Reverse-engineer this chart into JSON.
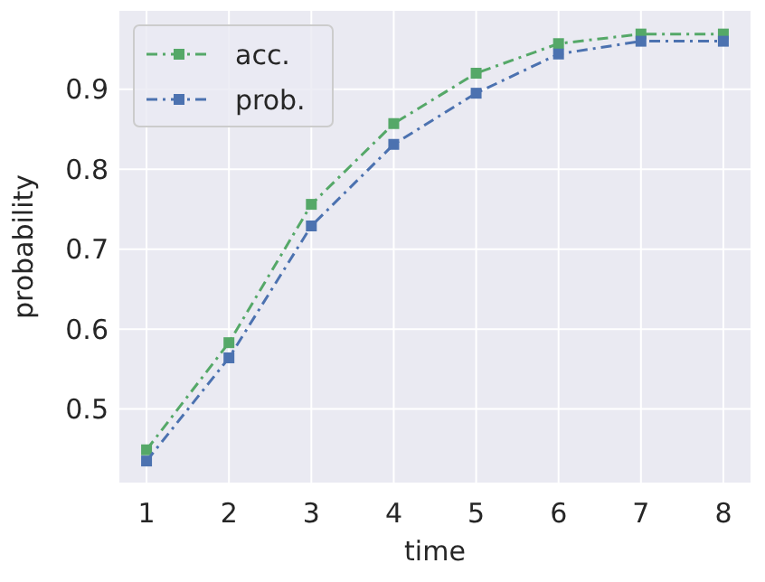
{
  "chart_data": {
    "type": "line",
    "xlabel": "time",
    "ylabel": "probability",
    "x": [
      1,
      2,
      3,
      4,
      5,
      6,
      7,
      8
    ],
    "series": [
      {
        "name": "acc.",
        "color": "#55a868",
        "values": [
          0.449,
          0.583,
          0.756,
          0.857,
          0.92,
          0.957,
          0.969,
          0.969
        ]
      },
      {
        "name": "prob.",
        "color": "#4c72b0",
        "values": [
          0.435,
          0.564,
          0.729,
          0.831,
          0.895,
          0.944,
          0.96,
          0.96
        ]
      }
    ],
    "xlim": [
      0.67,
      8.33
    ],
    "ylim": [
      0.408,
      0.998
    ],
    "xticks": [
      1,
      2,
      3,
      4,
      5,
      6,
      7,
      8
    ],
    "yticks": [
      0.5,
      0.6,
      0.7,
      0.8,
      0.9
    ],
    "grid": true,
    "legend": "top left",
    "marker": "square",
    "line_style": "dashed"
  }
}
